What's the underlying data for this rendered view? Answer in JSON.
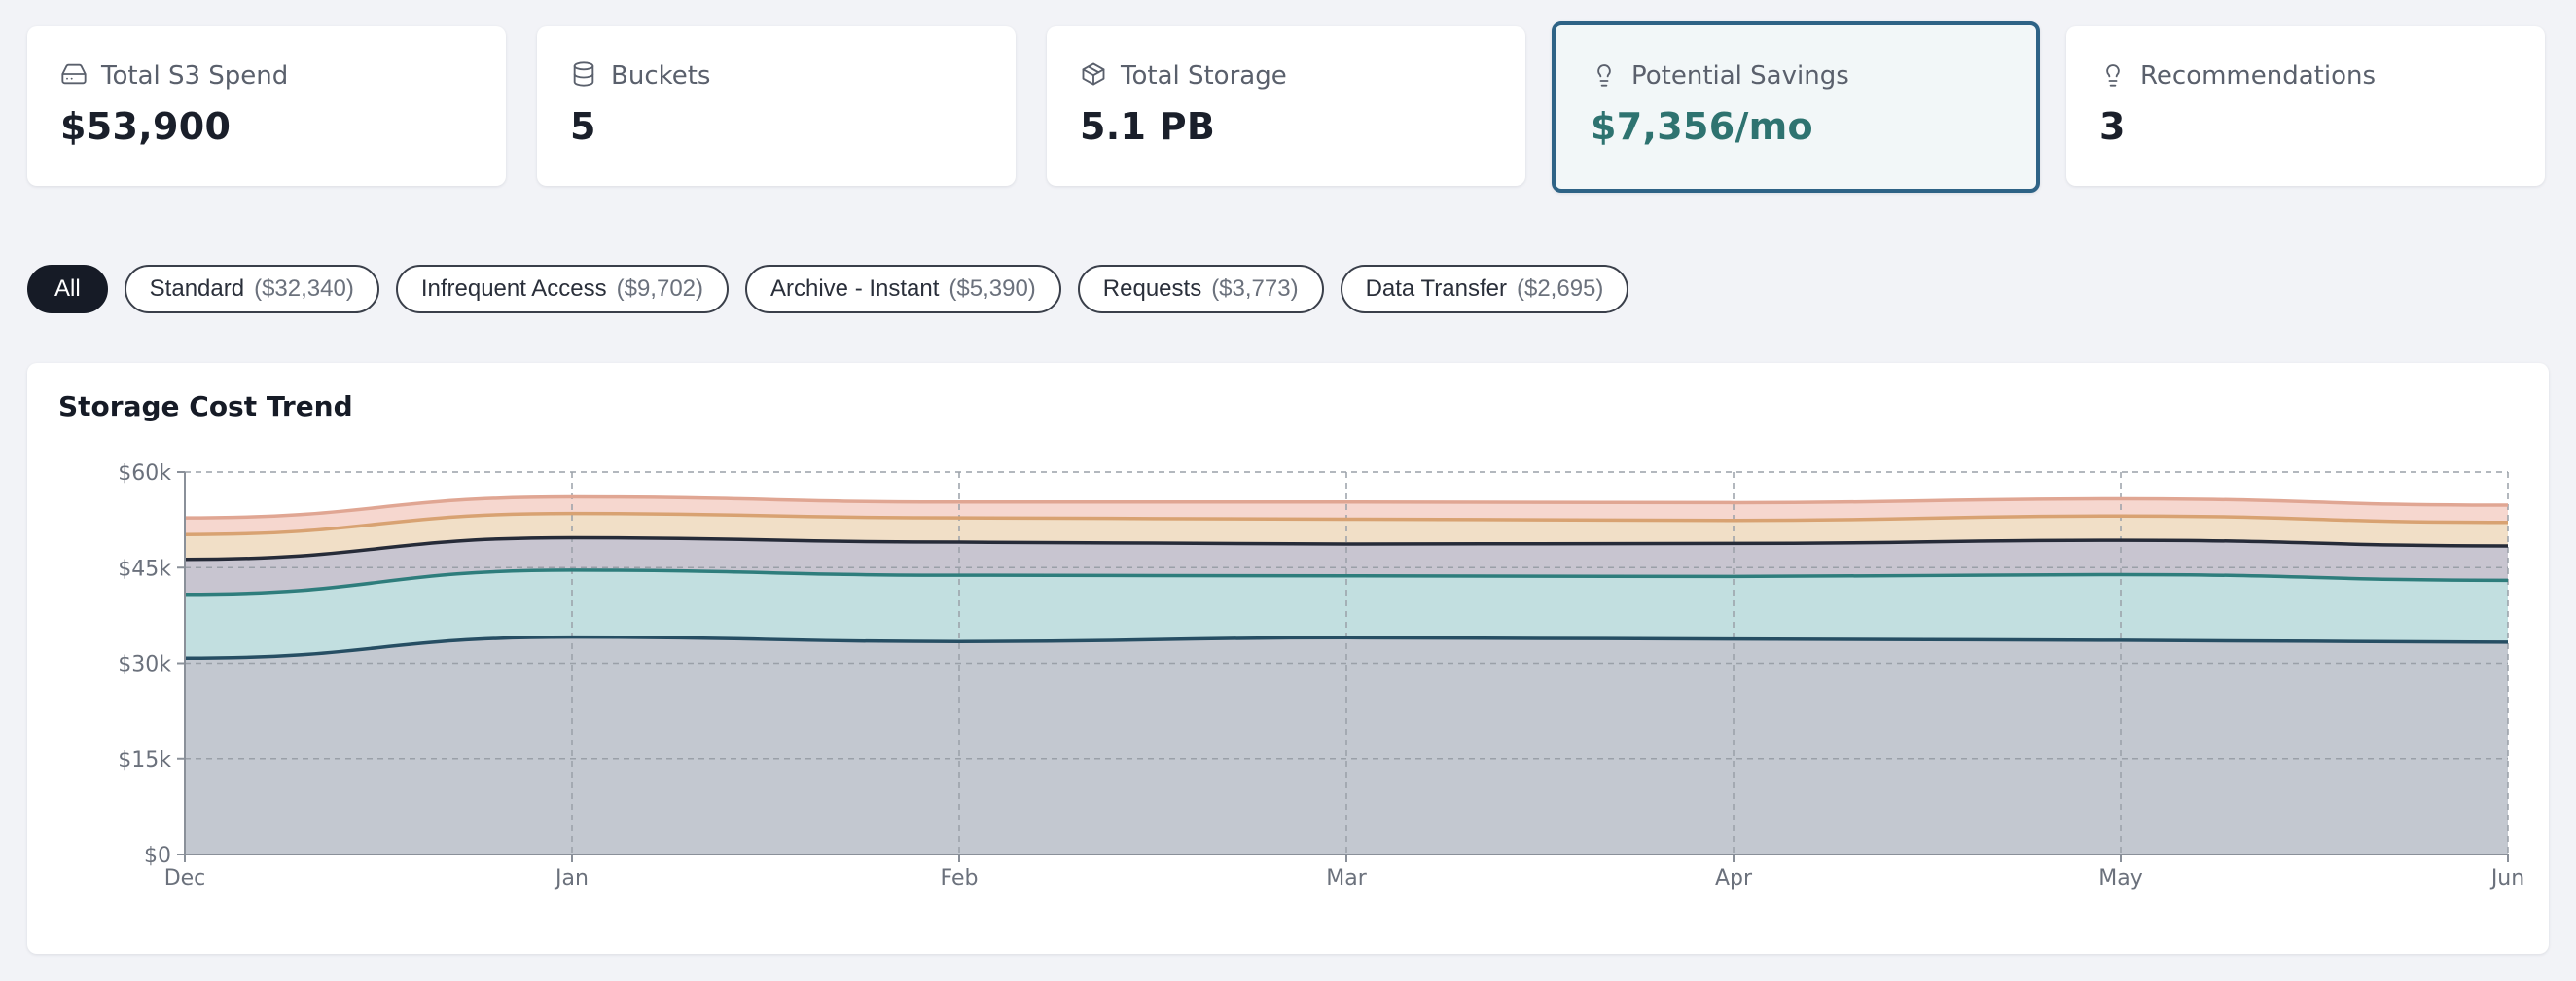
{
  "cards": [
    {
      "label": "Total S3 Spend",
      "value": "$53,900",
      "icon": "hard-drive-icon"
    },
    {
      "label": "Buckets",
      "value": "5",
      "icon": "database-icon"
    },
    {
      "label": "Total Storage",
      "value": "5.1 PB",
      "icon": "box-icon"
    },
    {
      "label": "Potential Savings",
      "value": "$7,356/mo",
      "icon": "lightbulb-icon"
    },
    {
      "label": "Recommendations",
      "value": "3",
      "icon": "lightbulb-icon"
    }
  ],
  "filters": [
    {
      "name": "All",
      "amount": "",
      "active": true
    },
    {
      "name": "Standard",
      "amount": "($32,340)"
    },
    {
      "name": "Infrequent Access",
      "amount": "($9,702)"
    },
    {
      "name": "Archive - Instant",
      "amount": "($5,390)"
    },
    {
      "name": "Requests",
      "amount": "($3,773)"
    },
    {
      "name": "Data Transfer",
      "amount": "($2,695)"
    }
  ],
  "chart_title": "Storage Cost Trend",
  "chart_data": {
    "type": "area",
    "stacked": true,
    "x": [
      "Dec",
      "Jan",
      "Feb",
      "Mar",
      "Apr",
      "May",
      "Jun"
    ],
    "ylim": [
      0,
      60000
    ],
    "yticks": [
      0,
      15000,
      30000,
      45000,
      60000
    ],
    "ytick_labels": [
      "$0",
      "$15k",
      "$30k",
      "$45k",
      "$60k"
    ],
    "grid": true,
    "series": [
      {
        "values": [
          30800,
          34100,
          33400,
          34000,
          33800,
          33600,
          33300
        ],
        "fill": "#c3c8d0",
        "stroke": "#264e63"
      },
      {
        "values": [
          10000,
          10500,
          10400,
          9700,
          9800,
          10300,
          9700
        ],
        "fill": "#c2dfe0",
        "stroke": "#2e7d7c"
      },
      {
        "values": [
          5500,
          5100,
          5200,
          5000,
          5200,
          5400,
          5400
        ],
        "fill": "#c8c5d0",
        "stroke": "#262b38"
      },
      {
        "values": [
          3900,
          3800,
          3800,
          3900,
          3600,
          3800,
          3700
        ],
        "fill": "#f1dfc7",
        "stroke": "#d8a272"
      },
      {
        "values": [
          2600,
          2600,
          2500,
          2700,
          2800,
          2700,
          2700
        ],
        "fill": "#f6d7cf",
        "stroke": "#e0a693"
      }
    ]
  }
}
